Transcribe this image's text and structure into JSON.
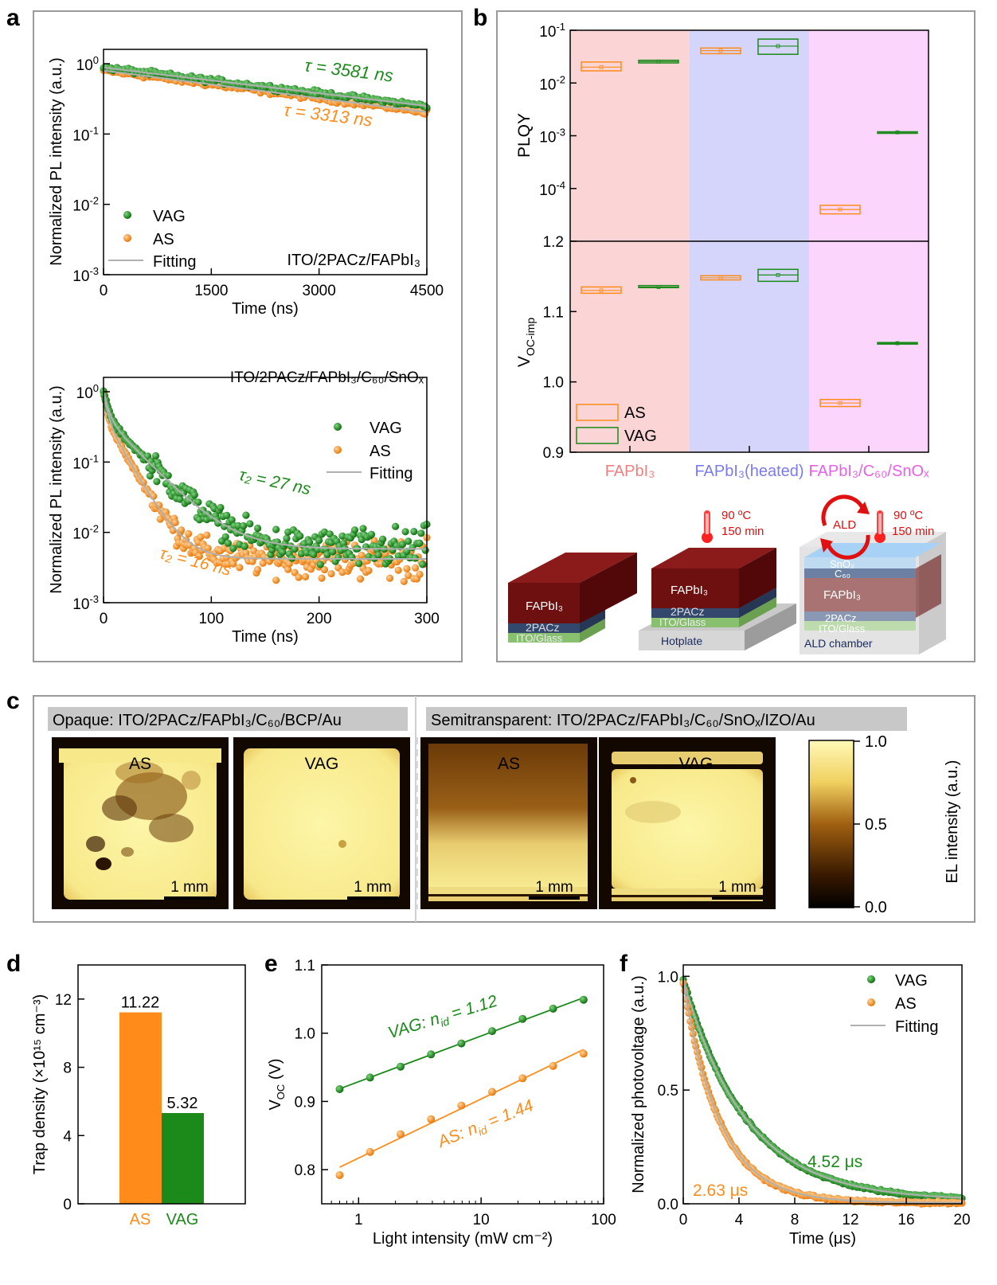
{
  "colors": {
    "vag": "#1b8a1b",
    "as": "#ff8c1a",
    "fit": "#b0b0b0"
  },
  "panels": {
    "a": "a",
    "b": "b",
    "c": "c",
    "d": "d",
    "e": "e",
    "f": "f"
  },
  "chart_data": [
    {
      "id": "a_top",
      "type": "scatter",
      "xlabel": "Time (ns)",
      "ylabel": "Normalized PL intensity (a.u.)",
      "xlim": [
        0,
        4500
      ],
      "ylim": [
        0.001,
        1.6
      ],
      "yscale": "log",
      "xticks": [
        "0",
        "1500",
        "3000",
        "4500"
      ],
      "yticks_exp": [
        "0",
        "-1",
        "-2",
        "-3"
      ],
      "sample_label": "ITO/2PACz/FAPbI₃",
      "legend": {
        "vag": "VAG",
        "as": "AS",
        "fit": "Fitting"
      },
      "series": [
        {
          "name": "VAG",
          "tau_label": "τ = 3581 ns",
          "tau_ns": 3581,
          "amplitude": 0.88
        },
        {
          "name": "AS",
          "tau_label": "τ = 3313 ns",
          "tau_ns": 3313,
          "amplitude": 0.8
        }
      ]
    },
    {
      "id": "a_bottom",
      "type": "scatter",
      "xlabel": "Time (ns)",
      "ylabel": "Normalized PL intensity (a.u.)",
      "xlim": [
        0,
        300
      ],
      "ylim": [
        0.001,
        1.6
      ],
      "yscale": "log",
      "xticks": [
        "0",
        "100",
        "200",
        "300"
      ],
      "yticks_exp": [
        "0",
        "-1",
        "-2",
        "-3"
      ],
      "sample_label": "ITO/2PACz/FAPbI₃/C₆₀/SnOₓ",
      "legend": {
        "vag": "VAG",
        "as": "AS",
        "fit": "Fitting"
      },
      "series": [
        {
          "name": "VAG",
          "tau_label": "τ₂ = 27 ns",
          "tau2_ns": 27,
          "floor": 0.0058
        },
        {
          "name": "AS",
          "tau_label": "τ₂ = 16 ns",
          "tau2_ns": 16,
          "floor": 0.0042
        }
      ]
    },
    {
      "id": "b",
      "type": "box",
      "categories": [
        "FAPbI₃",
        "FAPbI₃(heated)",
        "FAPbI₃/C₆₀/SnOₓ"
      ],
      "category_colors": [
        "#f08080",
        "#7b7bf0",
        "#e860e8"
      ],
      "band_colors": [
        "#fbd5d5",
        "#d5d5fb",
        "#fbd5fb"
      ],
      "top": {
        "ylabel": "PLQY",
        "yscale": "log",
        "ylim": [
          1e-05,
          0.1
        ],
        "yticks_exp": [
          "-1",
          "-2",
          "-3",
          "-4"
        ],
        "boxes": [
          {
            "series": "AS",
            "category": 0,
            "low": 0.017,
            "high": 0.025,
            "median": 0.02
          },
          {
            "series": "VAG",
            "category": 0,
            "low": 0.024,
            "high": 0.027,
            "median": 0.0255
          },
          {
            "series": "AS",
            "category": 1,
            "low": 0.036,
            "high": 0.046,
            "median": 0.041
          },
          {
            "series": "VAG",
            "category": 1,
            "low": 0.035,
            "high": 0.068,
            "median": 0.05
          },
          {
            "series": "AS",
            "category": 2,
            "low": 3.3e-05,
            "high": 4.8e-05,
            "median": 4e-05
          },
          {
            "series": "VAG",
            "category": 2,
            "low": 0.00113,
            "high": 0.00119,
            "median": 0.00116
          }
        ]
      },
      "bottom": {
        "ylabel": "V",
        "ylabel_sub": "OC-imp",
        "ylim": [
          0.9,
          1.2
        ],
        "yticks": [
          "1.2",
          "1.1",
          "1.0",
          "0.9"
        ],
        "boxes": [
          {
            "series": "AS",
            "category": 0,
            "low": 1.126,
            "high": 1.135,
            "median": 1.13
          },
          {
            "series": "VAG",
            "category": 0,
            "low": 1.134,
            "high": 1.137,
            "median": 1.135
          },
          {
            "series": "AS",
            "category": 1,
            "low": 1.145,
            "high": 1.151,
            "median": 1.148
          },
          {
            "series": "VAG",
            "category": 1,
            "low": 1.143,
            "high": 1.16,
            "median": 1.152
          },
          {
            "series": "AS",
            "category": 2,
            "low": 0.965,
            "high": 0.975,
            "median": 0.97
          },
          {
            "series": "VAG",
            "category": 2,
            "low": 1.054,
            "high": 1.056,
            "median": 1.055
          }
        ]
      },
      "legend": {
        "as": "AS",
        "vag": "VAG"
      }
    },
    {
      "id": "d",
      "type": "bar",
      "categories": [
        "AS",
        "VAG"
      ],
      "values": [
        11.22,
        5.32
      ],
      "value_labels": [
        "11.22",
        "5.32"
      ],
      "ylabel": "Trap density (×10¹⁵ cm⁻³)",
      "ylim": [
        0,
        14
      ],
      "yticks": [
        "0",
        "4",
        "8",
        "12"
      ]
    },
    {
      "id": "e",
      "type": "scatter",
      "xscale": "log",
      "xlabel": "Light intensity (mW cm⁻²)",
      "ylabel": "V",
      "ylabel_sub": "OC",
      "ylabel_unit": " (V)",
      "xlim": [
        0.5,
        100
      ],
      "ylim": [
        0.75,
        1.1
      ],
      "xticks": [
        "1",
        "10",
        "100"
      ],
      "yticks": [
        "0.8",
        "0.9",
        "1.0",
        "1.1"
      ],
      "x": [
        0.7,
        1.24,
        2.2,
        3.9,
        6.9,
        12.3,
        21.8,
        38.7,
        68.6
      ],
      "series": [
        {
          "name": "VAG",
          "label": "VAG: n",
          "label_sub": "id",
          "label_val": " = 1.12",
          "values": [
            0.918,
            0.935,
            0.951,
            0.969,
            0.985,
            1.003,
            1.021,
            1.036,
            1.049
          ]
        },
        {
          "name": "AS",
          "label": "AS: n",
          "label_sub": "id",
          "label_val": " = 1.44",
          "values": [
            0.792,
            0.826,
            0.852,
            0.874,
            0.894,
            0.914,
            0.934,
            0.952,
            0.97
          ]
        }
      ]
    },
    {
      "id": "f",
      "type": "scatter",
      "xlabel": "Time (μs)",
      "ylabel": "Normalized photovoltage (a.u.)",
      "xlim": [
        0,
        20
      ],
      "ylim": [
        0,
        1.05
      ],
      "xticks": [
        "0",
        "4",
        "8",
        "12",
        "16",
        "20"
      ],
      "yticks": [
        "0.0",
        "0.5",
        "1.0"
      ],
      "legend": {
        "vag": "VAG",
        "as": "AS",
        "fit": "Fitting"
      },
      "series": [
        {
          "name": "VAG",
          "tau_label": "4.52 μs",
          "tau_us": 4.52
        },
        {
          "name": "AS",
          "tau_label": "2.63 μs",
          "tau_us": 2.63
        }
      ]
    }
  ],
  "panel_b_schematic": {
    "temp1": "90 ºC",
    "time1": "150 min",
    "temp2": "90 ºC",
    "time2": "150 min",
    "ald": "ALD",
    "stack1": {
      "perovskite": "FAPbI₃",
      "htl": "2PACz",
      "sub": "ITO/Glass"
    },
    "stack2": {
      "perovskite": "FAPbI₃",
      "htl": "2PACz",
      "sub": "ITO/Glass",
      "base": "Hotplate"
    },
    "stack3": {
      "sno": "SnO₂",
      "c60": "C₆₀",
      "perovskite": "FAPbI₃",
      "htl": "2PACz",
      "sub": "ITO/Glass",
      "base": "ALD chamber"
    }
  },
  "panel_c": {
    "opaque_label": "Opaque: ITO/2PACz/FAPbI₃/C₆₀/BCP/Au",
    "semi_label": "Semitransparent: ITO/2PACz/FAPbI₃/C₆₀/SnOₓ/IZO/Au",
    "image_labels": [
      "AS",
      "VAG",
      "AS",
      "VAG"
    ],
    "scalebar": "1 mm",
    "colorbar_label": "EL intensity (a.u.)",
    "colorbar_ticks": [
      "1.0",
      "0.5",
      "0.0"
    ]
  }
}
